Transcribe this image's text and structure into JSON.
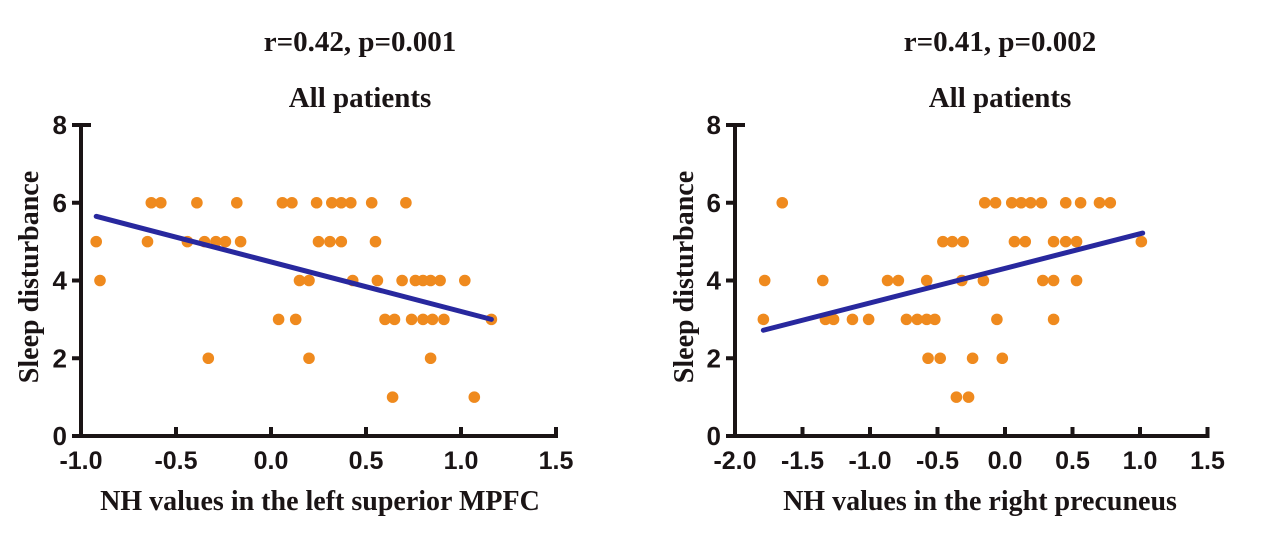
{
  "page": {
    "background": "#ffffff"
  },
  "chart_data": [
    {
      "type": "scatter",
      "title": "r=0.42, p=0.001",
      "subtitle": "All patients",
      "xlabel": "NH values in the left superior MPFC",
      "ylabel": "Sleep disturbance",
      "xlim": [
        -1.0,
        1.5
      ],
      "ylim": [
        0,
        8
      ],
      "xticks": [
        "-1.0",
        "-0.5",
        "0.0",
        "0.5",
        "1.0",
        "1.5"
      ],
      "yticks": [
        "0",
        "2",
        "4",
        "6",
        "8"
      ],
      "grid": false,
      "legend": null,
      "point_color": "#EF8A1E",
      "line_color": "#28289E",
      "axis_color": "#1a1415",
      "trend_line": {
        "x1": -0.92,
        "y1": 5.65,
        "x2": 1.16,
        "y2": 3.0
      },
      "points": [
        [
          -0.63,
          6
        ],
        [
          -0.58,
          6
        ],
        [
          -0.39,
          6
        ],
        [
          -0.18,
          6
        ],
        [
          0.06,
          6
        ],
        [
          0.11,
          6
        ],
        [
          0.24,
          6
        ],
        [
          0.32,
          6
        ],
        [
          0.37,
          6
        ],
        [
          0.42,
          6
        ],
        [
          0.53,
          6
        ],
        [
          0.71,
          6
        ],
        [
          -0.92,
          5
        ],
        [
          -0.65,
          5
        ],
        [
          -0.44,
          5
        ],
        [
          -0.35,
          5
        ],
        [
          -0.29,
          5
        ],
        [
          -0.24,
          5
        ],
        [
          -0.16,
          5
        ],
        [
          0.25,
          5
        ],
        [
          0.31,
          5
        ],
        [
          0.37,
          5
        ],
        [
          0.55,
          5
        ],
        [
          -0.9,
          4
        ],
        [
          0.15,
          4
        ],
        [
          0.2,
          4
        ],
        [
          0.43,
          4
        ],
        [
          0.56,
          4
        ],
        [
          0.69,
          4
        ],
        [
          0.76,
          4
        ],
        [
          0.8,
          4
        ],
        [
          0.84,
          4
        ],
        [
          0.89,
          4
        ],
        [
          1.02,
          4
        ],
        [
          0.04,
          3
        ],
        [
          0.13,
          3
        ],
        [
          0.6,
          3
        ],
        [
          0.65,
          3
        ],
        [
          0.74,
          3
        ],
        [
          0.8,
          3
        ],
        [
          0.85,
          3
        ],
        [
          0.91,
          3
        ],
        [
          1.16,
          3
        ],
        [
          -0.33,
          2
        ],
        [
          0.2,
          2
        ],
        [
          0.84,
          2
        ],
        [
          0.64,
          1
        ],
        [
          1.07,
          1
        ]
      ]
    },
    {
      "type": "scatter",
      "title": "r=0.41, p=0.002",
      "subtitle": "All patients",
      "xlabel": "NH values in the right precuneus",
      "ylabel": "Sleep disturbance",
      "xlim": [
        -2.0,
        1.5
      ],
      "ylim": [
        0,
        8
      ],
      "xticks": [
        "-2.0",
        "-1.5",
        "-1.0",
        "-0.5",
        "0.0",
        "0.5",
        "1.0",
        "1.5"
      ],
      "yticks": [
        "0",
        "2",
        "4",
        "6",
        "8"
      ],
      "grid": false,
      "legend": null,
      "point_color": "#EF8A1E",
      "line_color": "#28289E",
      "axis_color": "#1a1415",
      "trend_line": {
        "x1": -1.79,
        "y1": 2.72,
        "x2": 1.02,
        "y2": 5.22
      },
      "points": [
        [
          -1.65,
          6
        ],
        [
          -0.15,
          6
        ],
        [
          -0.07,
          6
        ],
        [
          0.05,
          6
        ],
        [
          0.12,
          6
        ],
        [
          0.19,
          6
        ],
        [
          0.27,
          6
        ],
        [
          0.45,
          6
        ],
        [
          0.56,
          6
        ],
        [
          0.7,
          6
        ],
        [
          0.78,
          6
        ],
        [
          -0.46,
          5
        ],
        [
          -0.39,
          5
        ],
        [
          -0.31,
          5
        ],
        [
          0.07,
          5
        ],
        [
          0.15,
          5
        ],
        [
          0.36,
          5
        ],
        [
          0.45,
          5
        ],
        [
          0.53,
          5
        ],
        [
          1.01,
          5
        ],
        [
          -1.78,
          4
        ],
        [
          -1.35,
          4
        ],
        [
          -0.87,
          4
        ],
        [
          -0.79,
          4
        ],
        [
          -0.58,
          4
        ],
        [
          -0.32,
          4
        ],
        [
          -0.16,
          4
        ],
        [
          0.28,
          4
        ],
        [
          0.36,
          4
        ],
        [
          0.53,
          4
        ],
        [
          -1.79,
          3
        ],
        [
          -1.33,
          3
        ],
        [
          -1.27,
          3
        ],
        [
          -1.13,
          3
        ],
        [
          -1.01,
          3
        ],
        [
          -0.73,
          3
        ],
        [
          -0.65,
          3
        ],
        [
          -0.58,
          3
        ],
        [
          -0.52,
          3
        ],
        [
          -0.06,
          3
        ],
        [
          0.36,
          3
        ],
        [
          -0.57,
          2
        ],
        [
          -0.48,
          2
        ],
        [
          -0.24,
          2
        ],
        [
          -0.02,
          2
        ],
        [
          -0.36,
          1
        ],
        [
          -0.27,
          1
        ]
      ]
    }
  ]
}
